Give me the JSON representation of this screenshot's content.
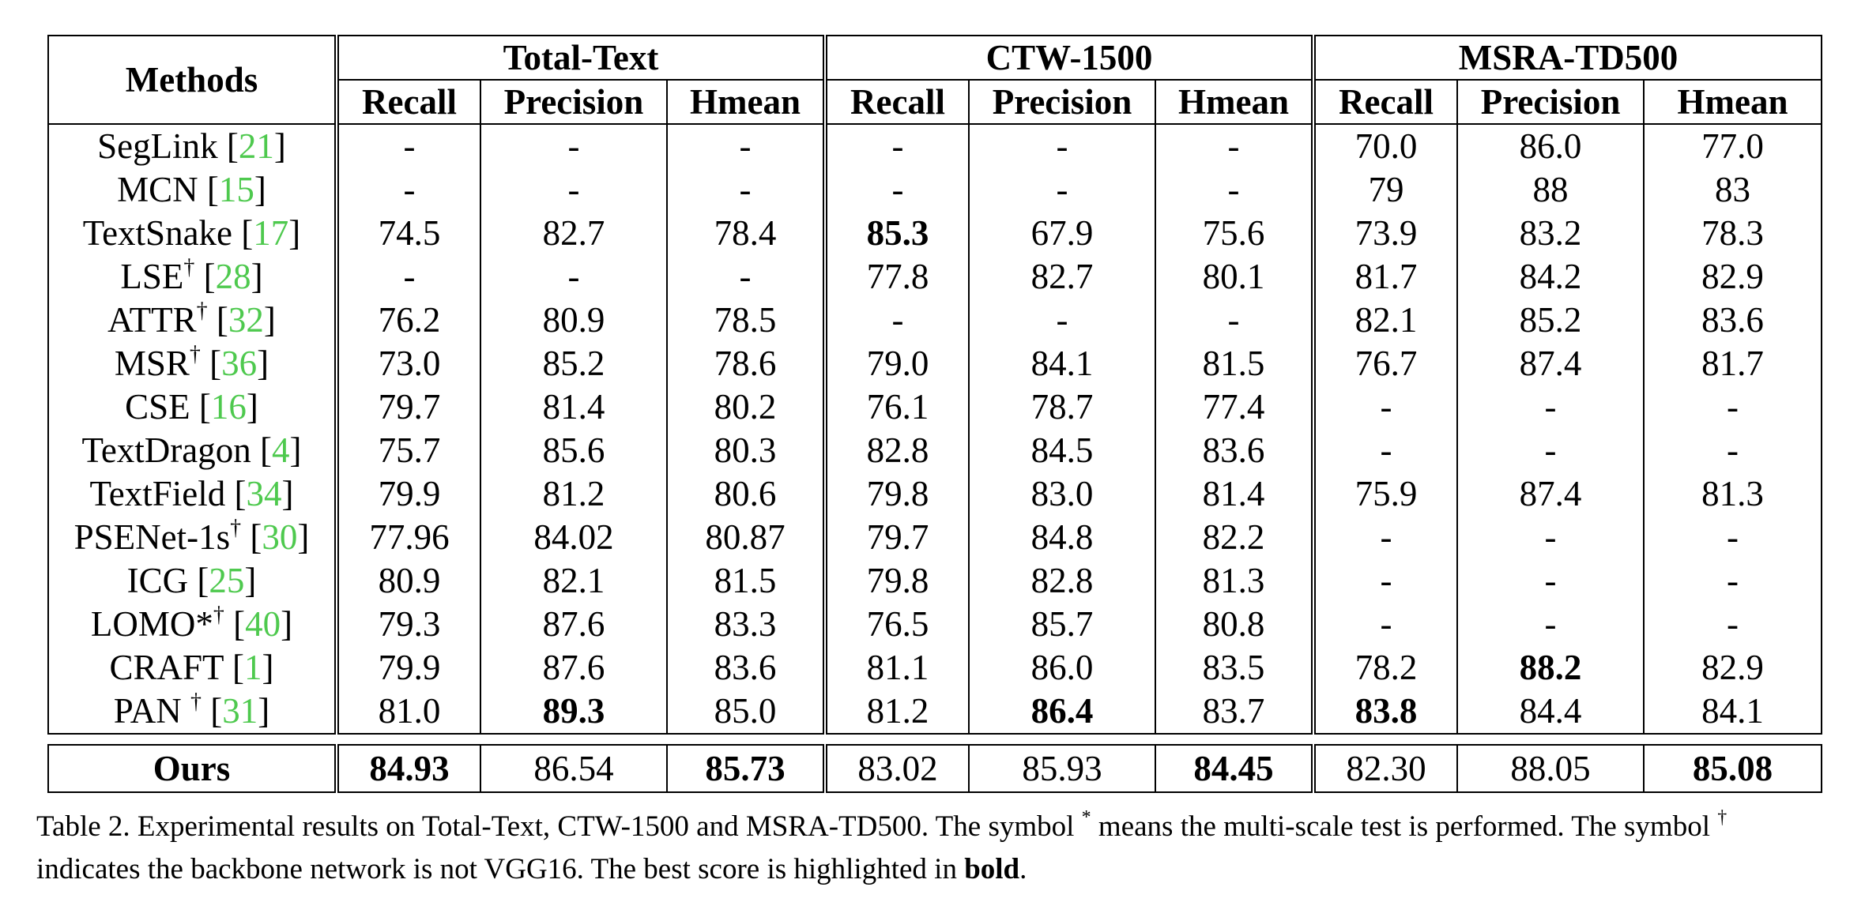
{
  "table": {
    "header": {
      "methods": "Methods",
      "groups": [
        "Total-Text",
        "CTW-1500",
        "MSRA-TD500"
      ],
      "metrics": [
        "Recall",
        "Precision",
        "Hmean"
      ]
    },
    "rows": [
      {
        "name": "SegLink",
        "sup": "",
        "ref": "21",
        "values": [
          "-",
          "-",
          "-",
          "-",
          "-",
          "-",
          "70.0",
          "86.0",
          "77.0"
        ],
        "bold": []
      },
      {
        "name": "MCN",
        "sup": "",
        "ref": "15",
        "values": [
          "-",
          "-",
          "-",
          "-",
          "-",
          "-",
          "79",
          "88",
          "83"
        ],
        "bold": []
      },
      {
        "name": "TextSnake",
        "sup": "",
        "ref": "17",
        "values": [
          "74.5",
          "82.7",
          "78.4",
          "85.3",
          "67.9",
          "75.6",
          "73.9",
          "83.2",
          "78.3"
        ],
        "bold": [
          3
        ]
      },
      {
        "name": "LSE",
        "sup": "†",
        "ref": "28",
        "values": [
          "-",
          "-",
          "-",
          "77.8",
          "82.7",
          "80.1",
          "81.7",
          "84.2",
          "82.9"
        ],
        "bold": []
      },
      {
        "name": "ATTR",
        "sup": "†",
        "ref": "32",
        "values": [
          "76.2",
          "80.9",
          "78.5",
          "-",
          "-",
          "-",
          "82.1",
          "85.2",
          "83.6"
        ],
        "bold": []
      },
      {
        "name": "MSR",
        "sup": "†",
        "ref": "36",
        "values": [
          "73.0",
          "85.2",
          "78.6",
          "79.0",
          "84.1",
          "81.5",
          "76.7",
          "87.4",
          "81.7"
        ],
        "bold": []
      },
      {
        "name": "CSE",
        "sup": "",
        "ref": "16",
        "values": [
          "79.7",
          "81.4",
          "80.2",
          "76.1",
          "78.7",
          "77.4",
          "-",
          "-",
          "-"
        ],
        "bold": []
      },
      {
        "name": "TextDragon",
        "sup": "",
        "ref": "4",
        "values": [
          "75.7",
          "85.6",
          "80.3",
          "82.8",
          "84.5",
          "83.6",
          "-",
          "-",
          "-"
        ],
        "bold": []
      },
      {
        "name": "TextField",
        "sup": "",
        "ref": "34",
        "values": [
          "79.9",
          "81.2",
          "80.6",
          "79.8",
          "83.0",
          "81.4",
          "75.9",
          "87.4",
          "81.3"
        ],
        "bold": []
      },
      {
        "name": "PSENet-1s",
        "sup": "†",
        "ref": "30",
        "values": [
          "77.96",
          "84.02",
          "80.87",
          "79.7",
          "84.8",
          "82.2",
          "-",
          "-",
          "-"
        ],
        "bold": []
      },
      {
        "name": "ICG",
        "sup": "",
        "ref": "25",
        "values": [
          "80.9",
          "82.1",
          "81.5",
          "79.8",
          "82.8",
          "81.3",
          "-",
          "-",
          "-"
        ],
        "bold": []
      },
      {
        "name": "LOMO*",
        "sup": "†",
        "ref": "40",
        "values": [
          "79.3",
          "87.6",
          "83.3",
          "76.5",
          "85.7",
          "80.8",
          "-",
          "-",
          "-"
        ],
        "bold": []
      },
      {
        "name": "CRAFT",
        "sup": "",
        "ref": "1",
        "values": [
          "79.9",
          "87.6",
          "83.6",
          "81.1",
          "86.0",
          "83.5",
          "78.2",
          "88.2",
          "82.9"
        ],
        "bold": [
          7
        ]
      },
      {
        "name": "PAN ",
        "sup": "†",
        "ref": "31",
        "values": [
          "81.0",
          "89.3",
          "85.0",
          "81.2",
          "86.4",
          "83.7",
          "83.8",
          "84.4",
          "84.1"
        ],
        "bold": [
          1,
          4,
          6
        ]
      }
    ],
    "ours": {
      "name": "Ours",
      "values": [
        "84.93",
        "86.54",
        "85.73",
        "83.02",
        "85.93",
        "84.45",
        "82.30",
        "88.05",
        "85.08"
      ],
      "bold": [
        0,
        2,
        5,
        8
      ]
    }
  },
  "caption": {
    "part1": "Table 2. Experimental results on Total-Text, CTW-1500 and MSRA-TD500. The symbol ",
    "sym1": "*",
    "part2": " means the multi-scale test is performed. The symbol ",
    "sym2": "†",
    "part3": " indicates the backbone network is not VGG16. The best score is highlighted in ",
    "bold_word": "bold",
    "part4": "."
  }
}
